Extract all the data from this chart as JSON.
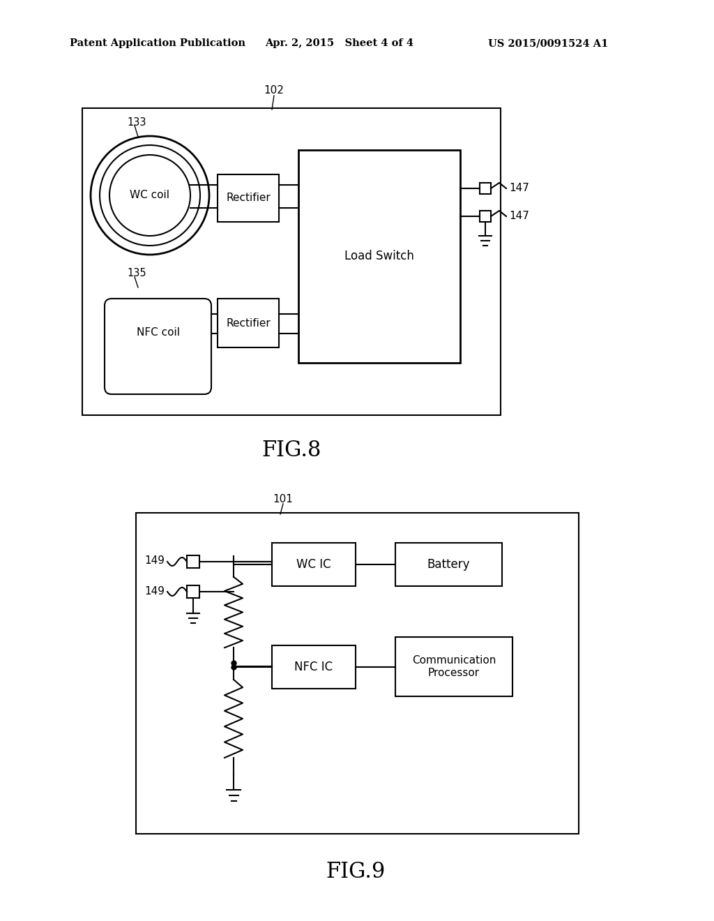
{
  "bg_color": "#ffffff",
  "header_left": "Patent Application Publication",
  "header_mid": "Apr. 2, 2015   Sheet 4 of 4",
  "header_right": "US 2015/0091524 A1",
  "fig8_label": "FIG.8",
  "fig9_label": "FIG.9",
  "fig8_box_label": "102",
  "fig9_box_label": "101",
  "wc_coil_label": "WC coil",
  "nfc_coil_label": "NFC coil",
  "rectifier1_label": "Rectifier",
  "rectifier2_label": "Rectifier",
  "load_switch_label": "Load Switch",
  "label_133": "133",
  "label_135": "135",
  "label_147a": "147",
  "label_147b": "147",
  "label_149a": "149",
  "label_149b": "149",
  "wc_ic_label": "WC IC",
  "nfc_ic_label": "NFC IC",
  "battery_label": "Battery",
  "comm_proc_label": "Communication\nProcessor"
}
